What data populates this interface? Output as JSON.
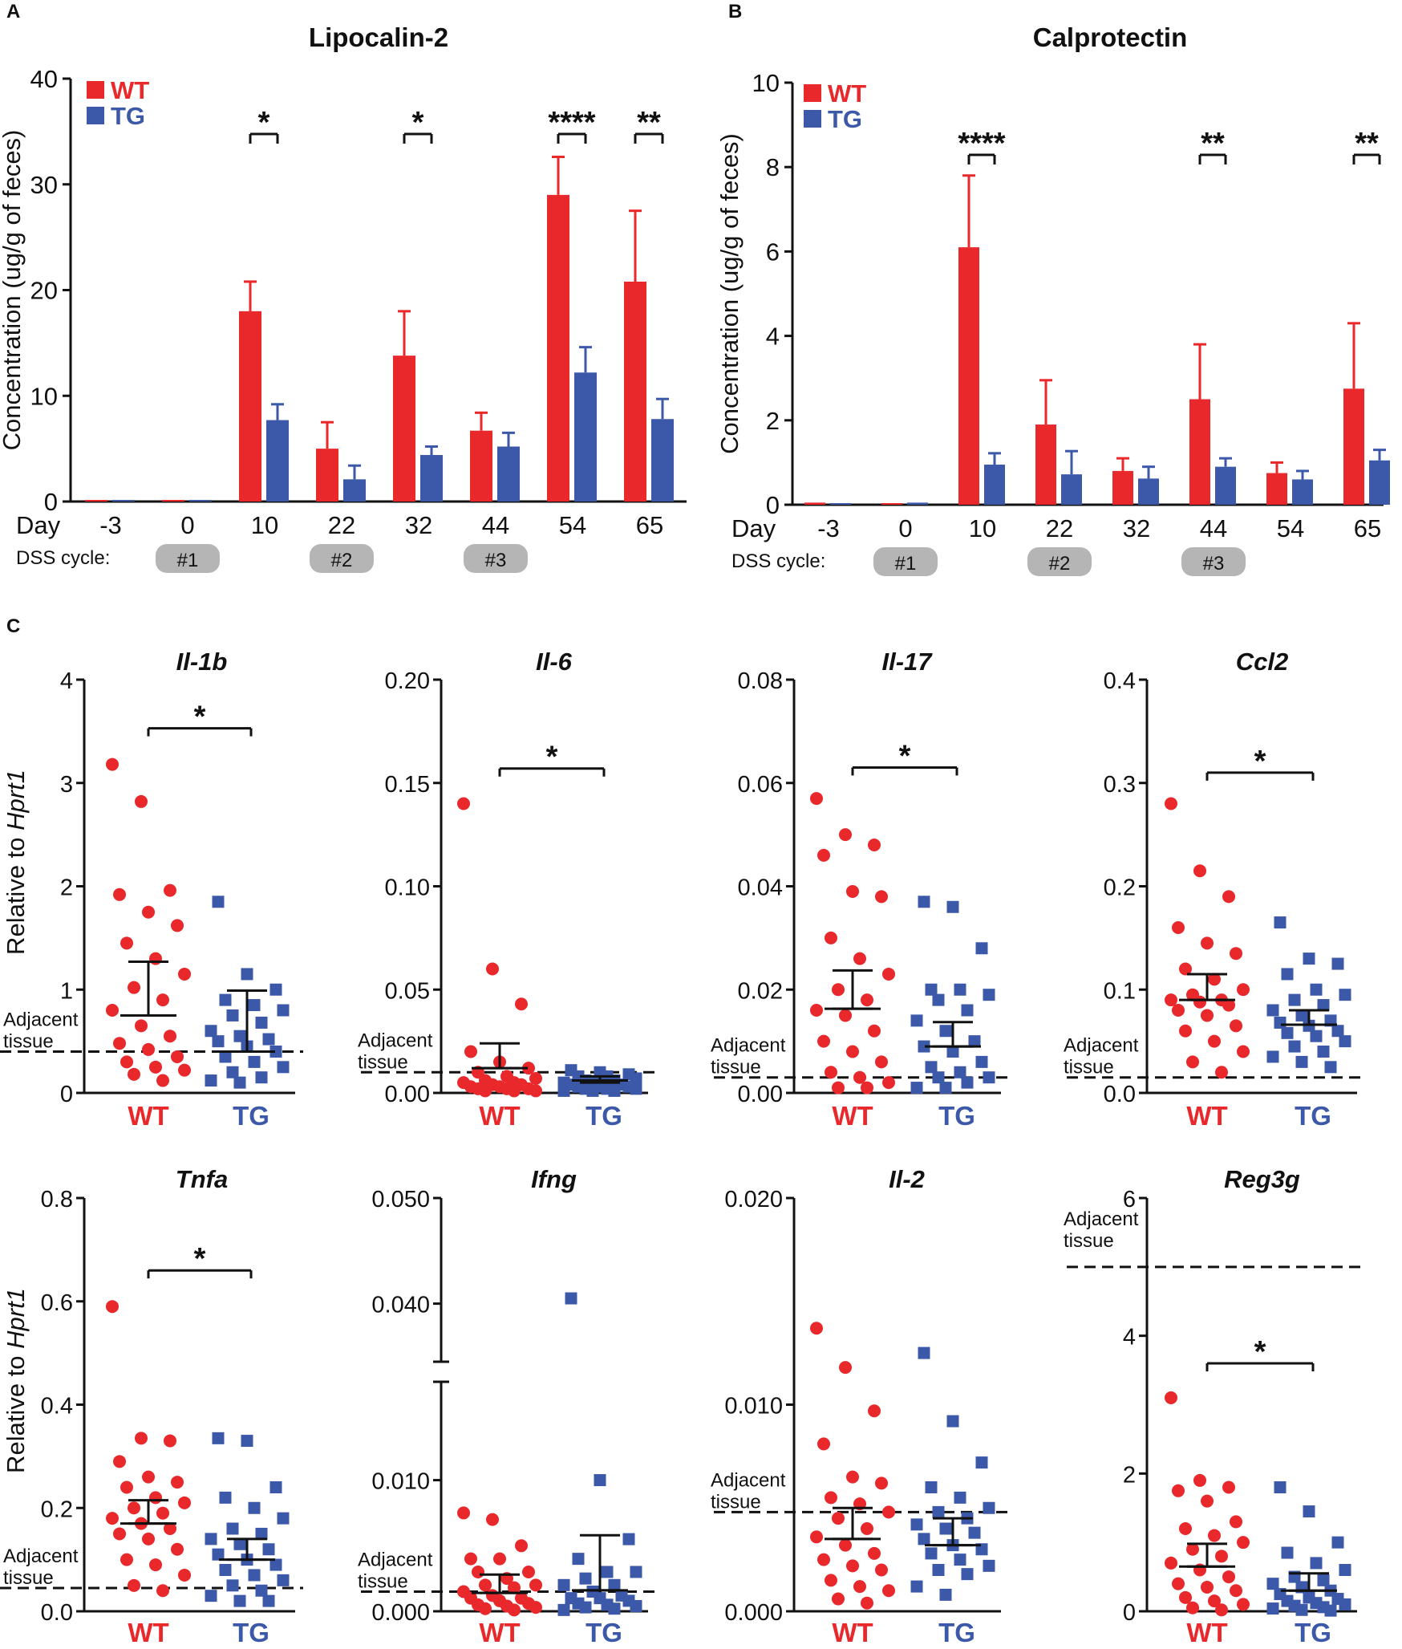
{
  "colors": {
    "wt": "#e8282b",
    "tg": "#3c58a8",
    "axis": "#111111",
    "pill": "#b5b5b5"
  },
  "legend": {
    "wt": "WT",
    "tg": "TG"
  },
  "common": {
    "day_label": "Day",
    "dss_label": "DSS cycle:",
    "ylabel_bar": "Concentration (ug/g of feces)",
    "ylabel_dot_prefix": "Relative to ",
    "ylabel_dot_gene": "Hprt1",
    "adjacent_line1": "Adjacent",
    "adjacent_line2": "tissue",
    "dss_cycles": [
      {
        "label": "#1",
        "day": "0"
      },
      {
        "label": "#2",
        "day": "22"
      },
      {
        "label": "#3",
        "day": "44"
      }
    ]
  },
  "chart_data": [
    {
      "type": "bar",
      "panel": "A",
      "title": "Lipocalin-2",
      "xlabel": "Day",
      "ylabel": "Concentration (ug/g of feces)",
      "categories": [
        "-3",
        "0",
        "10",
        "22",
        "32",
        "44",
        "54",
        "65"
      ],
      "ylim": [
        0,
        40
      ],
      "yticks": [
        "0",
        "10",
        "20",
        "30",
        "40"
      ],
      "series": [
        {
          "name": "WT",
          "values": [
            0,
            0,
            18,
            5,
            13.8,
            6.7,
            29,
            20.8
          ],
          "errors": [
            0,
            0,
            2.8,
            2.5,
            4.2,
            1.7,
            3.6,
            6.7
          ]
        },
        {
          "name": "TG",
          "values": [
            0,
            0,
            7.7,
            2.1,
            4.4,
            5.2,
            12.2,
            7.8
          ],
          "errors": [
            0,
            0,
            1.5,
            1.3,
            0.8,
            1.3,
            2.4,
            1.9
          ]
        }
      ],
      "significance": [
        {
          "category": "10",
          "label": "*"
        },
        {
          "category": "32",
          "label": "*"
        },
        {
          "category": "54",
          "label": "****"
        },
        {
          "category": "65",
          "label": "**"
        }
      ]
    },
    {
      "type": "bar",
      "panel": "B",
      "title": "Calprotectin",
      "xlabel": "Day",
      "ylabel": "Concentration (ug/g of feces)",
      "categories": [
        "-3",
        "0",
        "10",
        "22",
        "32",
        "44",
        "54",
        "65"
      ],
      "ylim": [
        0,
        10
      ],
      "yticks": [
        "0",
        "2",
        "4",
        "6",
        "8",
        "10"
      ],
      "series": [
        {
          "name": "WT",
          "values": [
            0.05,
            0.02,
            6.1,
            1.9,
            0.8,
            2.5,
            0.75,
            2.75
          ],
          "errors": [
            0,
            0,
            1.7,
            1.05,
            0.3,
            1.3,
            0.25,
            1.55
          ]
        },
        {
          "name": "TG",
          "values": [
            0.02,
            0.05,
            0.95,
            0.72,
            0.62,
            0.9,
            0.6,
            1.05
          ],
          "errors": [
            0,
            0,
            0.27,
            0.55,
            0.28,
            0.2,
            0.2,
            0.25
          ]
        }
      ],
      "significance": [
        {
          "category": "10",
          "label": "****"
        },
        {
          "category": "44",
          "label": "**"
        },
        {
          "category": "65",
          "label": "**"
        }
      ]
    },
    {
      "type": "scatter",
      "panel": "C",
      "gene": "Il-1b",
      "ylim": [
        0,
        4
      ],
      "yticks": [
        "0",
        "1",
        "2",
        "3",
        "4"
      ],
      "adjacent": 0.4,
      "sig": "*",
      "wt": {
        "points": [
          3.18,
          2.82,
          1.96,
          1.92,
          1.75,
          1.62,
          1.45,
          1.3,
          1.15,
          1.02,
          0.9,
          0.8,
          0.65,
          0.55,
          0.48,
          0.42,
          0.35,
          0.3,
          0.25,
          0.22,
          0.18,
          0.12
        ],
        "mean": 0.75,
        "sem_low": 0.75,
        "sem_high": 1.27
      },
      "tg": {
        "points": [
          1.85,
          1.15,
          1.0,
          0.9,
          0.85,
          0.8,
          0.75,
          0.68,
          0.6,
          0.55,
          0.52,
          0.5,
          0.45,
          0.4,
          0.35,
          0.3,
          0.25,
          0.2,
          0.15,
          0.12,
          0.1
        ],
        "mean": 0.4,
        "sem_low": 0.4,
        "sem_high": 0.99
      }
    },
    {
      "type": "scatter",
      "panel": "C",
      "gene": "Il-6",
      "ylim": [
        0,
        0.2
      ],
      "yticks": [
        "0.00",
        "0.05",
        "0.10",
        "0.15",
        "0.20"
      ],
      "adjacent": 0.01,
      "sig": "*",
      "wt": {
        "points": [
          0.14,
          0.06,
          0.043,
          0.02,
          0.015,
          0.012,
          0.01,
          0.008,
          0.007,
          0.006,
          0.005,
          0.005,
          0.004,
          0.004,
          0.003,
          0.003,
          0.002,
          0.002,
          0.002,
          0.001,
          0.001,
          0.001
        ],
        "mean": 0.012,
        "sem_low": 0.012,
        "sem_high": 0.024
      },
      "tg": {
        "points": [
          0.011,
          0.01,
          0.009,
          0.008,
          0.008,
          0.007,
          0.006,
          0.006,
          0.005,
          0.005,
          0.004,
          0.004,
          0.003,
          0.003,
          0.003,
          0.002,
          0.002,
          0.002,
          0.001,
          0.001,
          0.001
        ],
        "mean": 0.006,
        "sem_low": 0.005,
        "sem_high": 0.008
      }
    },
    {
      "type": "scatter",
      "panel": "C",
      "gene": "Il-17",
      "ylim": [
        0,
        0.08
      ],
      "yticks": [
        "0.00",
        "0.02",
        "0.04",
        "0.06",
        "0.08"
      ],
      "adjacent": 0.003,
      "sig": "*",
      "wt": {
        "points": [
          0.057,
          0.05,
          0.048,
          0.046,
          0.039,
          0.038,
          0.03,
          0.026,
          0.023,
          0.02,
          0.018,
          0.016,
          0.015,
          0.012,
          0.01,
          0.008,
          0.006,
          0.004,
          0.003,
          0.002,
          0.001,
          0.001
        ],
        "mean": 0.0163,
        "sem_low": 0.0163,
        "sem_high": 0.0237
      },
      "tg": {
        "points": [
          0.037,
          0.036,
          0.028,
          0.02,
          0.02,
          0.019,
          0.018,
          0.016,
          0.014,
          0.012,
          0.01,
          0.009,
          0.008,
          0.006,
          0.005,
          0.004,
          0.003,
          0.003,
          0.002,
          0.001,
          0.001
        ],
        "mean": 0.009,
        "sem_low": 0.009,
        "sem_high": 0.0137
      }
    },
    {
      "type": "scatter",
      "panel": "C",
      "gene": "Ccl2",
      "ylim": [
        0,
        0.4
      ],
      "yticks": [
        "0.0",
        "0.1",
        "0.2",
        "0.3",
        "0.4"
      ],
      "adjacent": 0.015,
      "sig": "*",
      "wt": {
        "points": [
          0.28,
          0.215,
          0.19,
          0.16,
          0.145,
          0.135,
          0.12,
          0.11,
          0.1,
          0.095,
          0.09,
          0.09,
          0.088,
          0.085,
          0.08,
          0.075,
          0.065,
          0.06,
          0.05,
          0.04,
          0.03,
          0.02
        ],
        "mean": 0.09,
        "sem_low": 0.09,
        "sem_high": 0.115
      },
      "tg": {
        "points": [
          0.165,
          0.13,
          0.125,
          0.115,
          0.1,
          0.095,
          0.09,
          0.085,
          0.08,
          0.075,
          0.07,
          0.068,
          0.065,
          0.06,
          0.058,
          0.055,
          0.05,
          0.045,
          0.04,
          0.035,
          0.03,
          0.025
        ],
        "mean": 0.066,
        "sem_low": 0.066,
        "sem_high": 0.08
      }
    },
    {
      "type": "scatter",
      "panel": "C",
      "gene": "Tnfa",
      "ylim": [
        0,
        0.8
      ],
      "yticks": [
        "0.0",
        "0.2",
        "0.4",
        "0.6",
        "0.8"
      ],
      "adjacent": 0.045,
      "sig": "*",
      "wt": {
        "points": [
          0.59,
          0.335,
          0.33,
          0.29,
          0.26,
          0.25,
          0.24,
          0.22,
          0.21,
          0.2,
          0.19,
          0.18,
          0.17,
          0.16,
          0.15,
          0.14,
          0.12,
          0.1,
          0.09,
          0.07,
          0.05,
          0.04
        ],
        "mean": 0.17,
        "sem_low": 0.17,
        "sem_high": 0.215
      },
      "tg": {
        "points": [
          0.335,
          0.33,
          0.24,
          0.22,
          0.2,
          0.18,
          0.16,
          0.15,
          0.14,
          0.13,
          0.12,
          0.11,
          0.1,
          0.09,
          0.08,
          0.07,
          0.06,
          0.05,
          0.04,
          0.03,
          0.02,
          0.02
        ],
        "mean": 0.1,
        "sem_low": 0.1,
        "sem_high": 0.14
      }
    },
    {
      "type": "scatter",
      "panel": "C",
      "gene": "Ifng",
      "broken_axis": true,
      "yticks": [
        "0.000",
        "0.010",
        "0.040",
        "0.050"
      ],
      "adjacent": 0.0015,
      "wt": {
        "points": [
          0.0075,
          0.007,
          0.005,
          0.004,
          0.004,
          0.003,
          0.003,
          0.0025,
          0.002,
          0.002,
          0.0018,
          0.0015,
          0.0012,
          0.001,
          0.001,
          0.0008,
          0.0006,
          0.0005,
          0.0004,
          0.0003,
          0.0002,
          0.0001
        ],
        "mean": 0.0014,
        "sem_low": 0.0014,
        "sem_high": 0.0028
      },
      "tg": {
        "points": [
          0.0405,
          0.01,
          0.0055,
          0.004,
          0.003,
          0.003,
          0.0025,
          0.002,
          0.002,
          0.0015,
          0.0012,
          0.001,
          0.001,
          0.0008,
          0.0006,
          0.0005,
          0.0004,
          0.0003,
          0.0002,
          0.0001
        ],
        "mean": 0.0016,
        "sem_low": 0.0016,
        "sem_high": 0.0058
      }
    },
    {
      "type": "scatter",
      "panel": "C",
      "gene": "Il-2",
      "ylim": [
        0,
        0.02
      ],
      "yticks": [
        "0.000",
        "0.010",
        "0.020"
      ],
      "adjacent": 0.0048,
      "wt": {
        "points": [
          0.0137,
          0.0118,
          0.0097,
          0.0081,
          0.0065,
          0.0062,
          0.0055,
          0.0052,
          0.0048,
          0.0045,
          0.004,
          0.0036,
          0.0032,
          0.0028,
          0.0025,
          0.0022,
          0.002,
          0.0015,
          0.0012,
          0.001,
          0.0006,
          0.0004
        ],
        "mean": 0.0035,
        "sem_low": 0.0035,
        "sem_high": 0.005
      },
      "tg": {
        "points": [
          0.0125,
          0.0092,
          0.0072,
          0.006,
          0.0055,
          0.005,
          0.0048,
          0.0045,
          0.0042,
          0.004,
          0.0038,
          0.0035,
          0.0032,
          0.003,
          0.0028,
          0.0025,
          0.0022,
          0.002,
          0.0018,
          0.0012,
          0.0008
        ],
        "mean": 0.0032,
        "sem_low": 0.0032,
        "sem_high": 0.0045
      }
    },
    {
      "type": "scatter",
      "panel": "C",
      "gene": "Reg3g",
      "ylim": [
        0,
        6
      ],
      "yticks": [
        "0",
        "2",
        "4",
        "6"
      ],
      "adjacent": 5,
      "sig": "*",
      "wt": {
        "points": [
          3.1,
          1.9,
          1.8,
          1.75,
          1.6,
          1.3,
          1.2,
          1.1,
          1.0,
          0.9,
          0.8,
          0.7,
          0.6,
          0.5,
          0.4,
          0.35,
          0.3,
          0.2,
          0.15,
          0.1,
          0.05,
          0.02
        ],
        "mean": 0.65,
        "sem_low": 0.65,
        "sem_high": 0.98
      },
      "tg": {
        "points": [
          1.8,
          1.45,
          1.0,
          0.85,
          0.7,
          0.6,
          0.5,
          0.45,
          0.4,
          0.35,
          0.3,
          0.25,
          0.2,
          0.18,
          0.15,
          0.12,
          0.1,
          0.08,
          0.06,
          0.04,
          0.02,
          0.01
        ],
        "mean": 0.3,
        "sem_low": 0.3,
        "sem_high": 0.55
      }
    }
  ],
  "panel_labels": [
    "A",
    "B",
    "C"
  ]
}
